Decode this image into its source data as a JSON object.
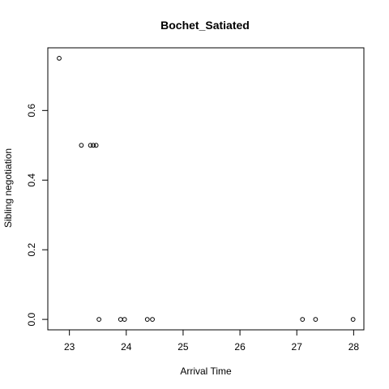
{
  "chart_data": {
    "type": "scatter",
    "title": "Bochet_Satiated",
    "xlabel": "Arrival Time",
    "ylabel": "Sibling negotiation",
    "xlim": [
      22.62,
      28.18
    ],
    "ylim": [
      -0.03,
      0.78
    ],
    "xticks": [
      23,
      24,
      25,
      26,
      27,
      28
    ],
    "yticks": [
      0.0,
      0.2,
      0.4,
      0.6
    ],
    "ytick_labels": [
      "0.0",
      "0.2",
      "0.4",
      "0.6"
    ],
    "grid": false,
    "points": [
      {
        "x": 22.82,
        "y": 0.75
      },
      {
        "x": 23.21,
        "y": 0.5
      },
      {
        "x": 23.37,
        "y": 0.5
      },
      {
        "x": 23.42,
        "y": 0.5
      },
      {
        "x": 23.47,
        "y": 0.5
      },
      {
        "x": 23.52,
        "y": 0.0
      },
      {
        "x": 23.9,
        "y": 0.0
      },
      {
        "x": 23.97,
        "y": 0.0
      },
      {
        "x": 24.37,
        "y": 0.0
      },
      {
        "x": 24.46,
        "y": 0.0
      },
      {
        "x": 27.1,
        "y": 0.0
      },
      {
        "x": 27.33,
        "y": 0.0
      },
      {
        "x": 27.99,
        "y": 0.0
      }
    ]
  }
}
